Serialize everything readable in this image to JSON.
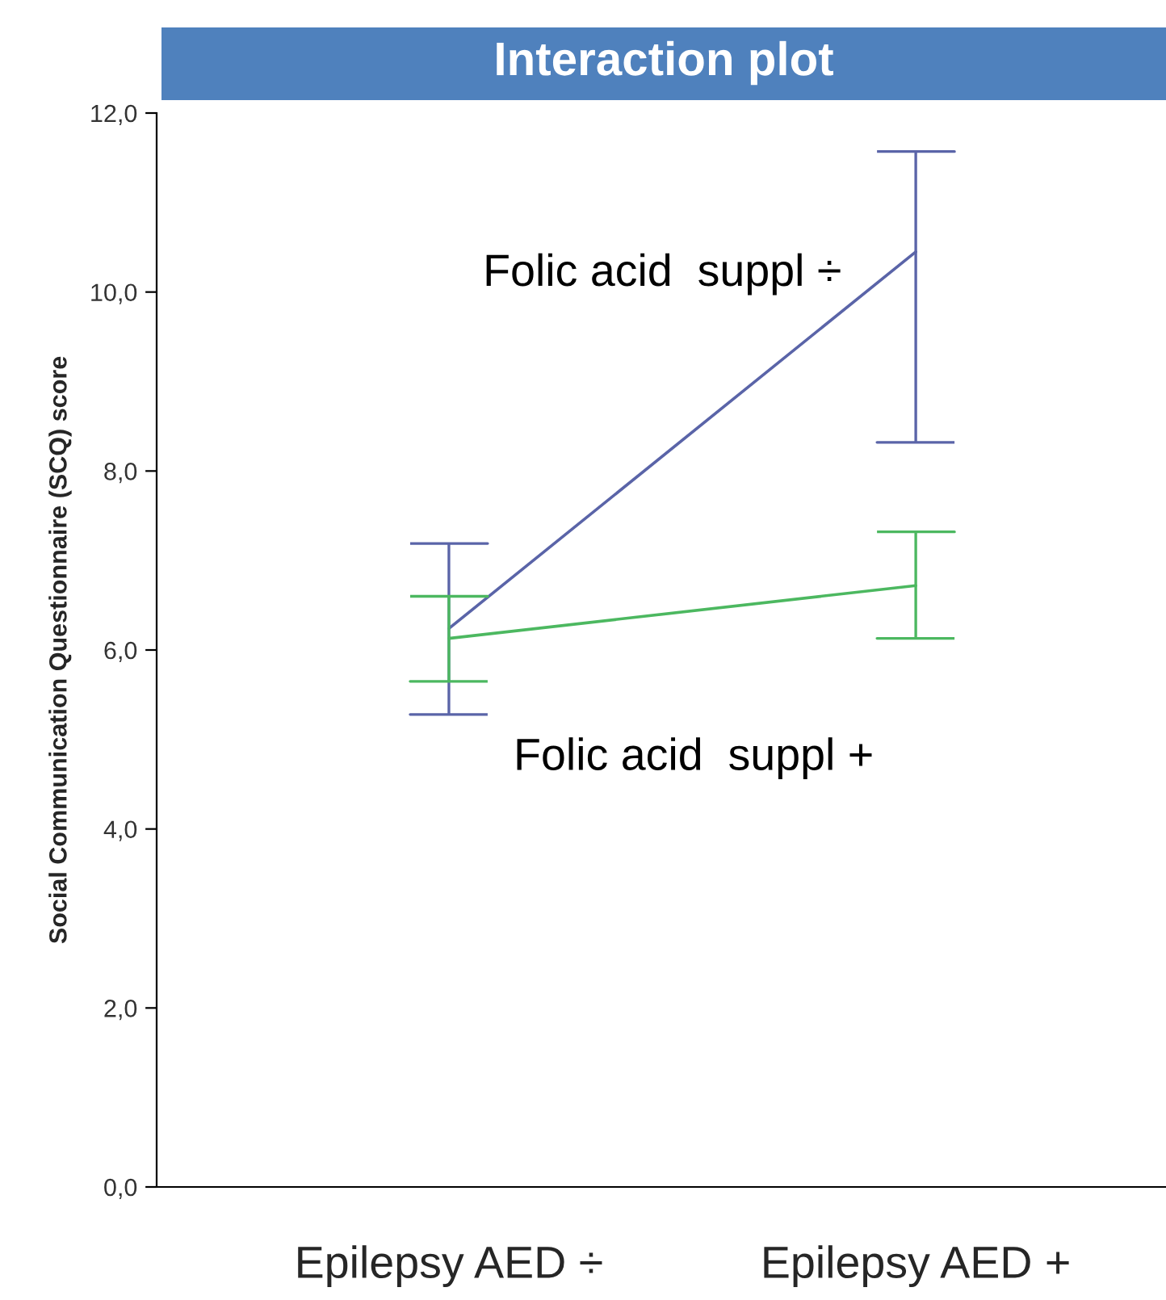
{
  "chart_data": {
    "type": "line",
    "title": "Interaction plot",
    "ylabel": "Social Communication Questionnaire (SCQ) score",
    "categories": [
      "Epilepsy AED ÷",
      "Epilepsy AED +"
    ],
    "series": [
      {
        "name": "Folic acid  suppl ÷",
        "color": "#5a64a8",
        "values": [
          6.24,
          10.45
        ],
        "errors": [
          [
            5.28,
            7.19
          ],
          [
            8.32,
            11.57
          ]
        ]
      },
      {
        "name": "Folic acid  suppl +",
        "color": "#4cb860",
        "values": [
          6.13,
          6.72
        ],
        "errors": [
          [
            5.65,
            6.6
          ],
          [
            6.13,
            7.32
          ]
        ]
      }
    ],
    "ylim": [
      0,
      12
    ],
    "yticks": [
      {
        "value": 0,
        "label": "0,0"
      },
      {
        "value": 2,
        "label": "2,0"
      },
      {
        "value": 4,
        "label": "4,0"
      },
      {
        "value": 6,
        "label": "6,0"
      },
      {
        "value": 8,
        "label": "8,0"
      },
      {
        "value": 10,
        "label": "10,0"
      },
      {
        "value": 12,
        "label": "12,0"
      }
    ],
    "grid": false,
    "marker": "none",
    "line_style": "solid"
  }
}
